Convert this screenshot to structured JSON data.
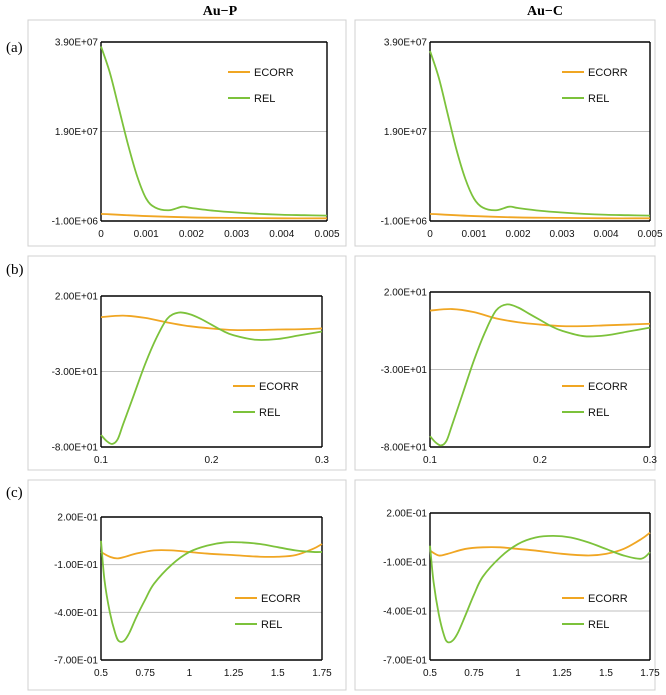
{
  "figure": {
    "column_titles": [
      "Au−P",
      "Au−C"
    ],
    "row_labels": [
      "(a)",
      "(b)",
      "(c)"
    ],
    "colors": {
      "ECORR": "#f0a623",
      "REL": "#7cc23b",
      "grid": "#bfbfbf",
      "frame": "#d0d0d0"
    }
  },
  "chart_data": [
    {
      "type": "line",
      "row": "(a)",
      "column": "Au−P",
      "xlim": [
        0,
        0.005
      ],
      "ylim": [
        -1000000,
        39000000
      ],
      "xticks": [
        "0",
        "0.001",
        "0.002",
        "0.003",
        "0.004",
        "0.005"
      ],
      "yticks": [
        "3.90E+07",
        "1.90E+07",
        "-1.00E+06"
      ],
      "ytick_values": [
        39000000,
        19000000,
        -1000000
      ],
      "legend_position": "upper-right",
      "series": [
        {
          "name": "ECORR",
          "x": [
            0,
            0.001,
            0.002,
            0.003,
            0.004,
            0.005
          ],
          "y": [
            600000,
            100000,
            -200000,
            -300000,
            -400000,
            -400000
          ]
        },
        {
          "name": "REL",
          "x": [
            0,
            0.0002,
            0.0004,
            0.0006,
            0.0008,
            0.001,
            0.0012,
            0.0015,
            0.0018,
            0.002,
            0.0025,
            0.003,
            0.0035,
            0.004,
            0.0045,
            0.005
          ],
          "y": [
            38000000,
            32000000,
            24000000,
            16000000,
            9000000,
            4000000,
            2000000,
            1400000,
            2200000,
            1900000,
            1300000,
            900000,
            600000,
            400000,
            300000,
            200000
          ]
        }
      ]
    },
    {
      "type": "line",
      "row": "(a)",
      "column": "Au−C",
      "xlim": [
        0,
        0.005
      ],
      "ylim": [
        -1000000,
        39000000
      ],
      "xticks": [
        "0",
        "0.001",
        "0.002",
        "0.003",
        "0.004",
        "0.005"
      ],
      "yticks": [
        "3.90E+07",
        "1.90E+07",
        "-1.00E+06"
      ],
      "ytick_values": [
        39000000,
        19000000,
        -1000000
      ],
      "legend_position": "upper-right",
      "series": [
        {
          "name": "ECORR",
          "x": [
            0,
            0.001,
            0.002,
            0.003,
            0.004,
            0.005
          ],
          "y": [
            600000,
            100000,
            -200000,
            -300000,
            -400000,
            -400000
          ]
        },
        {
          "name": "REL",
          "x": [
            0,
            0.0002,
            0.0004,
            0.0006,
            0.0008,
            0.001,
            0.0012,
            0.0015,
            0.0018,
            0.002,
            0.0025,
            0.003,
            0.0035,
            0.004,
            0.0045,
            0.005
          ],
          "y": [
            37000000,
            31000000,
            23000000,
            15000000,
            8500000,
            4000000,
            2000000,
            1400000,
            2200000,
            1900000,
            1300000,
            900000,
            600000,
            400000,
            300000,
            200000
          ]
        }
      ]
    },
    {
      "type": "line",
      "row": "(b)",
      "column": "Au−P",
      "xlim": [
        0.1,
        0.3
      ],
      "ylim": [
        -80,
        20
      ],
      "xticks": [
        "0.1",
        "0.2",
        "0.3"
      ],
      "yticks": [
        "2.00E+01",
        "-3.00E+01",
        "-8.00E+01"
      ],
      "ytick_values": [
        20,
        -30,
        -80
      ],
      "legend_position": "lower-right",
      "series": [
        {
          "name": "ECORR",
          "x": [
            0.1,
            0.12,
            0.14,
            0.16,
            0.18,
            0.2,
            0.22,
            0.24,
            0.26,
            0.28,
            0.3
          ],
          "y": [
            6,
            7,
            5.5,
            2.5,
            0,
            -1.5,
            -2.5,
            -2.5,
            -2.2,
            -2,
            -1.5
          ]
        },
        {
          "name": "REL",
          "x": [
            0.1,
            0.105,
            0.11,
            0.115,
            0.12,
            0.13,
            0.14,
            0.15,
            0.16,
            0.17,
            0.18,
            0.19,
            0.2,
            0.21,
            0.22,
            0.24,
            0.26,
            0.28,
            0.3
          ],
          "y": [
            -72,
            -76,
            -78,
            -75,
            -65,
            -45,
            -25,
            -8,
            5,
            9,
            8,
            5,
            1,
            -3,
            -6,
            -9,
            -8.5,
            -6,
            -3.5
          ]
        }
      ]
    },
    {
      "type": "line",
      "row": "(b)",
      "column": "Au−C",
      "xlim": [
        0.1,
        0.3
      ],
      "ylim": [
        -80,
        20
      ],
      "xticks": [
        "0.1",
        "0.2",
        "0.3"
      ],
      "yticks": [
        "2.00E+01",
        "-3.00E+01",
        "-8.00E+01"
      ],
      "ytick_values": [
        20,
        -30,
        -80
      ],
      "legend_position": "lower-right",
      "series": [
        {
          "name": "ECORR",
          "x": [
            0.1,
            0.12,
            0.14,
            0.16,
            0.18,
            0.2,
            0.22,
            0.24,
            0.26,
            0.28,
            0.3
          ],
          "y": [
            8,
            9,
            7,
            3,
            0.5,
            -1,
            -2,
            -2,
            -1.5,
            -1,
            -0.5
          ]
        },
        {
          "name": "REL",
          "x": [
            0.1,
            0.105,
            0.11,
            0.115,
            0.12,
            0.13,
            0.14,
            0.15,
            0.16,
            0.17,
            0.18,
            0.19,
            0.2,
            0.21,
            0.22,
            0.24,
            0.26,
            0.28,
            0.3
          ],
          "y": [
            -73,
            -77,
            -79,
            -76,
            -66,
            -45,
            -24,
            -6,
            8,
            12,
            10,
            6,
            2,
            -2,
            -5,
            -8.5,
            -8,
            -5.5,
            -3
          ]
        }
      ]
    },
    {
      "type": "line",
      "row": "(c)",
      "column": "Au−P",
      "xlim": [
        0.5,
        1.75
      ],
      "ylim": [
        -0.7,
        0.2
      ],
      "xticks": [
        "0.5",
        "0.75",
        "1",
        "1.25",
        "1.5",
        "1.75"
      ],
      "yticks": [
        "2.00E-01",
        "-1.00E-01",
        "-4.00E-01",
        "-7.00E-01"
      ],
      "ytick_values": [
        0.2,
        -0.1,
        -0.4,
        -0.7
      ],
      "legend_position": "lower-right",
      "series": [
        {
          "name": "ECORR",
          "x": [
            0.5,
            0.55,
            0.6,
            0.7,
            0.8,
            0.9,
            1.0,
            1.1,
            1.25,
            1.4,
            1.5,
            1.6,
            1.7,
            1.75
          ],
          "y": [
            -0.02,
            -0.05,
            -0.06,
            -0.03,
            -0.01,
            -0.01,
            -0.02,
            -0.03,
            -0.04,
            -0.05,
            -0.05,
            -0.04,
            0.0,
            0.03
          ]
        },
        {
          "name": "REL",
          "x": [
            0.5,
            0.52,
            0.55,
            0.58,
            0.6,
            0.63,
            0.66,
            0.7,
            0.75,
            0.8,
            0.9,
            1.0,
            1.1,
            1.2,
            1.3,
            1.4,
            1.5,
            1.6,
            1.7,
            1.75
          ],
          "y": [
            0.05,
            -0.2,
            -0.4,
            -0.53,
            -0.58,
            -0.58,
            -0.53,
            -0.43,
            -0.32,
            -0.22,
            -0.1,
            -0.02,
            0.02,
            0.04,
            0.04,
            0.03,
            0.01,
            -0.01,
            -0.02,
            -0.02
          ]
        }
      ]
    },
    {
      "type": "line",
      "row": "(c)",
      "column": "Au−C",
      "xlim": [
        0.5,
        1.75
      ],
      "ylim": [
        -0.7,
        0.2
      ],
      "xticks": [
        "0.5",
        "0.75",
        "1",
        "1.25",
        "1.5",
        "1.75"
      ],
      "yticks": [
        "2.00E-01",
        "-1.00E-01",
        "-4.00E-01",
        "-7.00E-01"
      ],
      "ytick_values": [
        0.2,
        -0.1,
        -0.4,
        -0.7
      ],
      "legend_position": "lower-right",
      "series": [
        {
          "name": "ECORR",
          "x": [
            0.5,
            0.55,
            0.6,
            0.7,
            0.8,
            0.9,
            1.0,
            1.1,
            1.25,
            1.4,
            1.5,
            1.6,
            1.7,
            1.75
          ],
          "y": [
            -0.03,
            -0.06,
            -0.05,
            -0.02,
            -0.01,
            -0.01,
            -0.02,
            -0.03,
            -0.05,
            -0.06,
            -0.05,
            -0.02,
            0.04,
            0.08
          ]
        },
        {
          "name": "REL",
          "x": [
            0.5,
            0.52,
            0.55,
            0.58,
            0.6,
            0.63,
            0.66,
            0.7,
            0.75,
            0.8,
            0.9,
            1.0,
            1.1,
            1.2,
            1.3,
            1.4,
            1.5,
            1.6,
            1.7,
            1.75
          ],
          "y": [
            0.0,
            -0.22,
            -0.42,
            -0.55,
            -0.59,
            -0.58,
            -0.53,
            -0.43,
            -0.3,
            -0.19,
            -0.07,
            0.01,
            0.05,
            0.06,
            0.05,
            0.02,
            -0.02,
            -0.06,
            -0.08,
            -0.04
          ]
        }
      ]
    }
  ]
}
